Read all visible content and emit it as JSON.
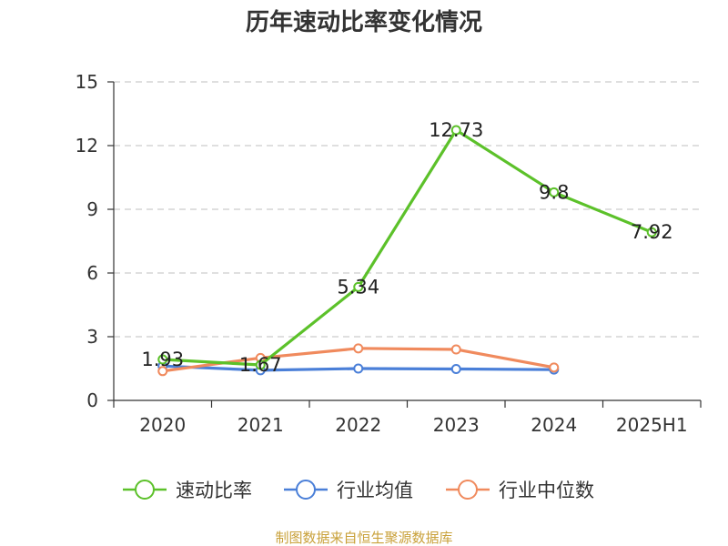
{
  "chart_data": {
    "type": "line",
    "title": "历年速动比率变化情况",
    "categories": [
      "2020",
      "2021",
      "2022",
      "2023",
      "2024",
      "2025H1"
    ],
    "ylim": [
      0,
      15
    ],
    "yticks": [
      0,
      3,
      6,
      9,
      12,
      15
    ],
    "grid": true,
    "legend_position": "bottom",
    "series": [
      {
        "name": "速动比率",
        "color": "#5cc12a",
        "values": [
          1.93,
          1.67,
          5.34,
          12.73,
          9.8,
          7.92
        ],
        "labels": [
          "1.93",
          "1.67",
          "5.34",
          "12.73",
          "9.8",
          "7.92"
        ]
      },
      {
        "name": "行业均值",
        "color": "#4a7fd8",
        "values": [
          1.62,
          1.42,
          1.5,
          1.48,
          1.45,
          null
        ]
      },
      {
        "name": "行业中位数",
        "color": "#f08a5d",
        "values": [
          1.38,
          2.0,
          2.45,
          2.4,
          1.55,
          null
        ]
      }
    ]
  },
  "source_text": "制图数据来自恒生聚源数据库"
}
